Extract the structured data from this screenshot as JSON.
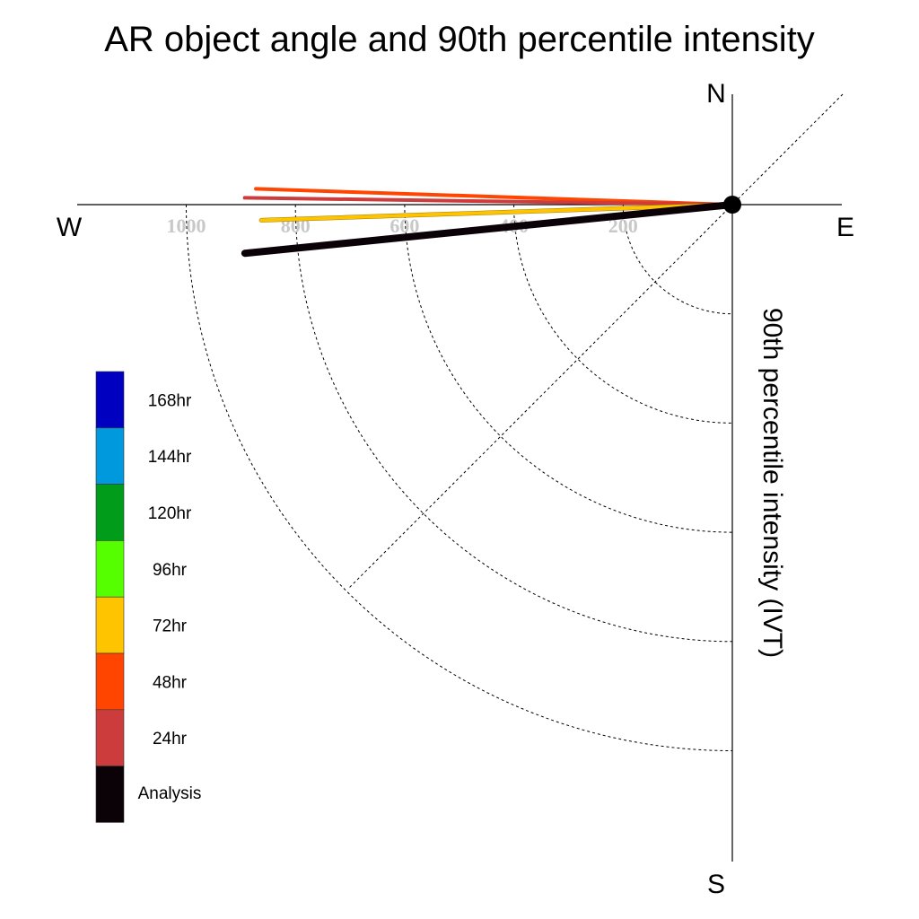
{
  "chart_data": {
    "type": "polar-line",
    "title": "AR object angle and 90th percentile intensity",
    "axis_label": "90th percentile intensity (IVT)",
    "compass": {
      "north": "N",
      "south": "S",
      "east": "E",
      "west": "W"
    },
    "radial_ticks": [
      "200",
      "400",
      "600",
      "800",
      "1000"
    ],
    "radial_tick_values": [
      200,
      400,
      600,
      800,
      1000
    ],
    "rlim": [
      0,
      1200
    ],
    "grid": true,
    "legend_placement": "bottom-left",
    "legend": [
      {
        "label": "168hr",
        "color": "#0000c0"
      },
      {
        "label": "144hr",
        "color": "#0099dd"
      },
      {
        "label": "120hr",
        "color": "#009c1a"
      },
      {
        "label": "96hr",
        "color": "#55ff00"
      },
      {
        "label": "72hr",
        "color": "#ffc400"
      },
      {
        "label": "48hr",
        "color": "#ff4500"
      },
      {
        "label": "24hr",
        "color": "#cc3c3c"
      },
      {
        "label": "Analysis",
        "color": "#0b0207"
      }
    ],
    "series": [
      {
        "name": "48hr",
        "angle_deg": 178.1,
        "intensity": 873,
        "color": "#ff4500"
      },
      {
        "name": "24hr",
        "angle_deg": 179.2,
        "intensity": 893,
        "color": "#cc3c3c"
      },
      {
        "name": "72hr",
        "angle_deg": 181.9,
        "intensity": 863,
        "color": "#ffc400"
      },
      {
        "name": "Analysis",
        "angle_deg": 185.7,
        "intensity": 897,
        "color": "#0b0207"
      }
    ]
  }
}
